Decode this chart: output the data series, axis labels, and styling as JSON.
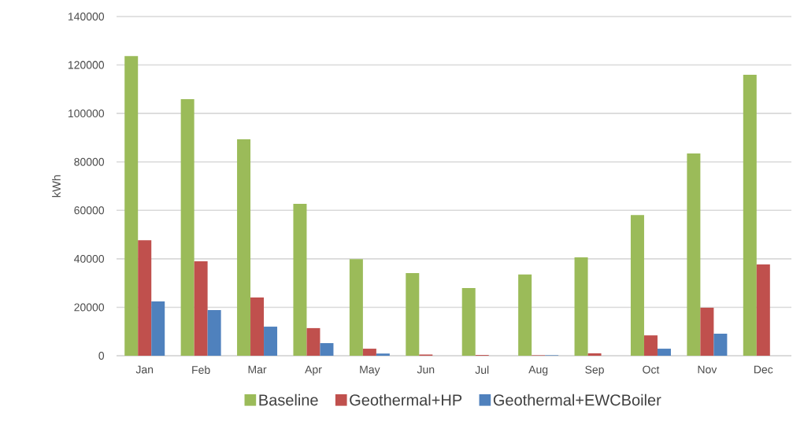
{
  "chart_data": {
    "type": "bar",
    "ylabel": "kWh",
    "categories": [
      "Jan",
      "Feb",
      "Mar",
      "Apr",
      "May",
      "Jun",
      "Jul",
      "Aug",
      "Sep",
      "Oct",
      "Nov",
      "Dec"
    ],
    "series": [
      {
        "name": "Baseline",
        "color": "#9bbb59",
        "values": [
          123700,
          105900,
          89300,
          62700,
          39900,
          34100,
          27900,
          33500,
          40600,
          58100,
          83500,
          116000
        ]
      },
      {
        "name": "Geothermal+HP",
        "color": "#c0504d",
        "values": [
          47700,
          39000,
          24000,
          11400,
          2900,
          500,
          300,
          200,
          1000,
          8400,
          19800,
          37700
        ]
      },
      {
        "name": "Geothermal+EWCBoiler",
        "color": "#4f81bd",
        "values": [
          22400,
          18800,
          12000,
          5200,
          900,
          0,
          0,
          200,
          0,
          2900,
          9100,
          null
        ]
      }
    ],
    "ylim": [
      0,
      140000
    ],
    "yticks": [
      0,
      20000,
      40000,
      60000,
      80000,
      100000,
      120000,
      140000
    ],
    "grid": "y",
    "legend": "bottom"
  }
}
